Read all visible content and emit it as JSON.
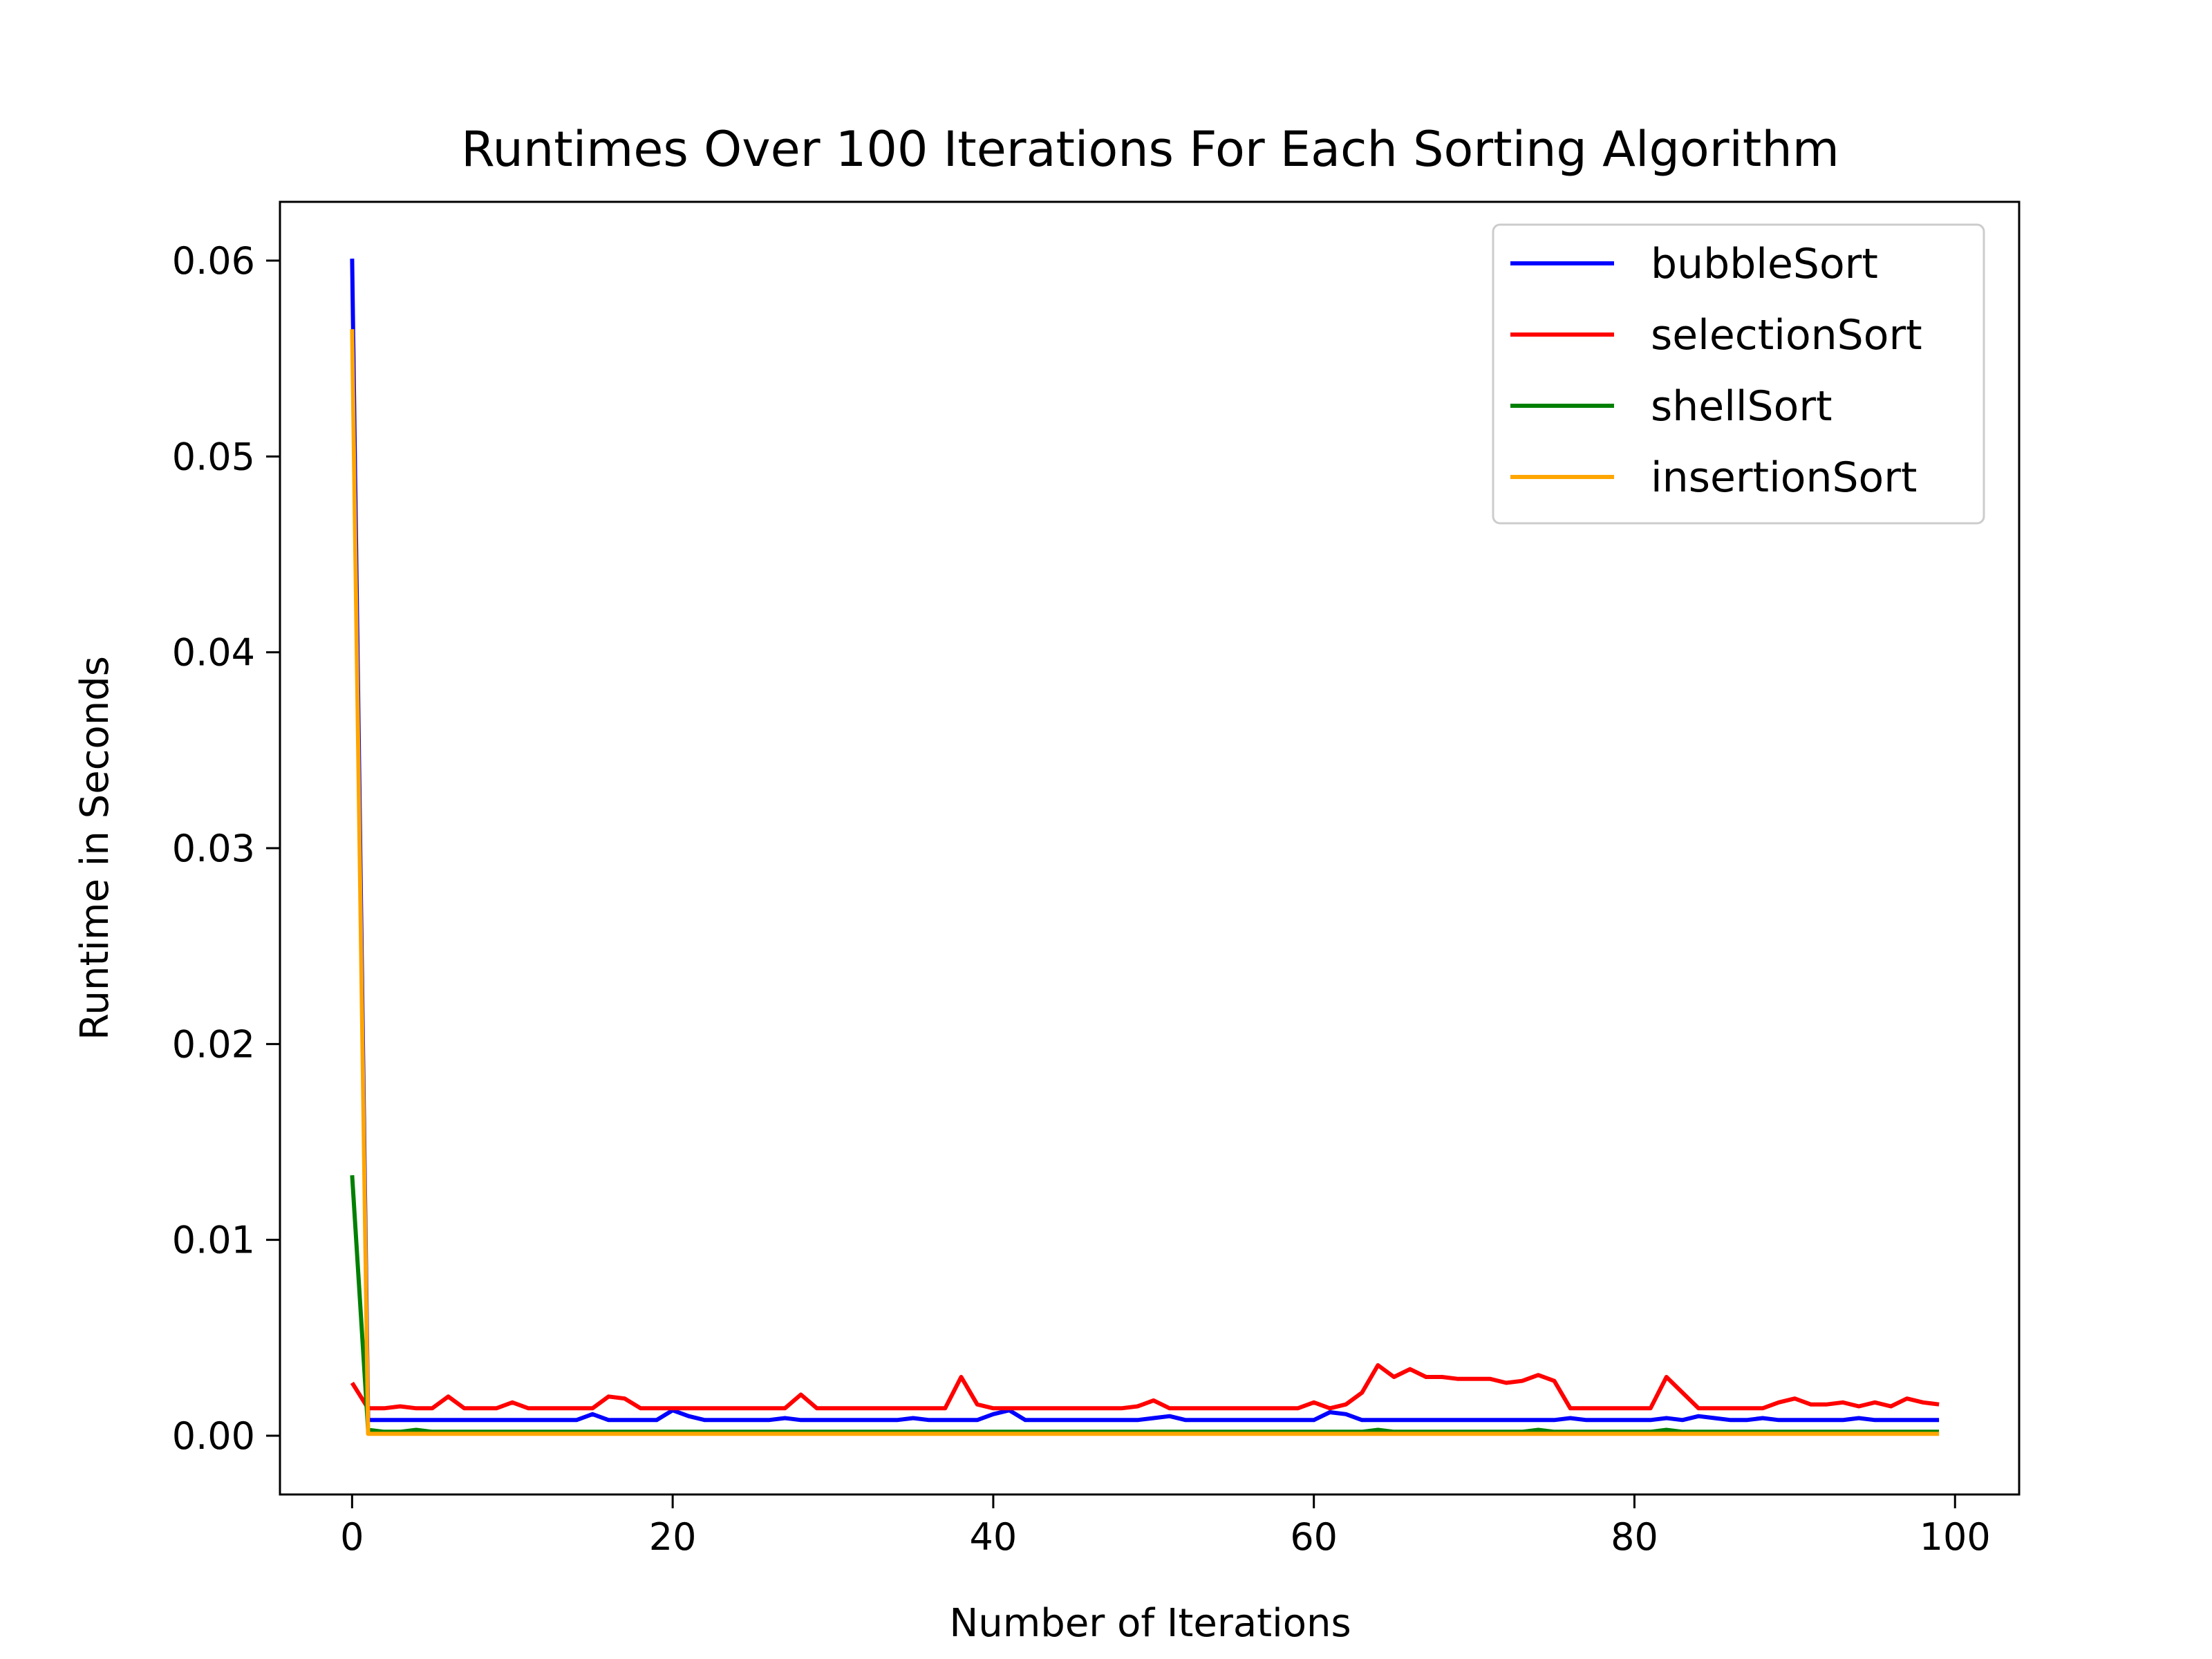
{
  "chart_data": {
    "type": "line",
    "title": "Runtimes Over 100 Iterations For Each Sorting Algorithm",
    "xlabel": "Number of Iterations",
    "ylabel": "Runtime in Seconds",
    "xlim": [
      -4.5,
      104
    ],
    "ylim": [
      -0.003,
      0.063
    ],
    "xticks": [
      0,
      20,
      40,
      60,
      80,
      100
    ],
    "xtick_labels": [
      "0",
      "20",
      "40",
      "60",
      "80",
      "100"
    ],
    "yticks": [
      0.0,
      0.01,
      0.02,
      0.03,
      0.04,
      0.05,
      0.06
    ],
    "ytick_labels": [
      "0.00",
      "0.01",
      "0.02",
      "0.03",
      "0.04",
      "0.05",
      "0.06"
    ],
    "grid": false,
    "legend_position": "top-right",
    "series": [
      {
        "name": "bubbleSort",
        "color": "#0000ff",
        "first_points": [
          [
            0,
            0.0601
          ],
          [
            1,
            0.0008
          ]
        ],
        "baseline": 0.0008,
        "spikes": [
          [
            15,
            0.0011
          ],
          [
            20,
            0.0013
          ],
          [
            21,
            0.001
          ],
          [
            27,
            0.0009
          ],
          [
            35,
            0.0009
          ],
          [
            40,
            0.0011
          ],
          [
            41,
            0.0013
          ],
          [
            50,
            0.0009
          ],
          [
            51,
            0.001
          ],
          [
            61,
            0.0012
          ],
          [
            62,
            0.0011
          ],
          [
            76,
            0.0009
          ],
          [
            82,
            0.0009
          ],
          [
            84,
            0.001
          ],
          [
            85,
            0.0009
          ],
          [
            88,
            0.0009
          ],
          [
            94,
            0.0009
          ]
        ],
        "last_x": 99
      },
      {
        "name": "selectionSort",
        "color": "#ff0000",
        "first_points": [
          [
            0,
            0.0027
          ],
          [
            1,
            0.0014
          ]
        ],
        "baseline": 0.0014,
        "spikes": [
          [
            3,
            0.0015
          ],
          [
            6,
            0.002
          ],
          [
            10,
            0.0017
          ],
          [
            16,
            0.002
          ],
          [
            17,
            0.0019
          ],
          [
            28,
            0.0021
          ],
          [
            38,
            0.003
          ],
          [
            39,
            0.0016
          ],
          [
            49,
            0.0015
          ],
          [
            50,
            0.0018
          ],
          [
            60,
            0.0017
          ],
          [
            62,
            0.0016
          ],
          [
            63,
            0.0022
          ],
          [
            64,
            0.0036
          ],
          [
            65,
            0.003
          ],
          [
            66,
            0.0034
          ],
          [
            67,
            0.003
          ],
          [
            68,
            0.003
          ],
          [
            69,
            0.0029
          ],
          [
            70,
            0.0029
          ],
          [
            71,
            0.0029
          ],
          [
            72,
            0.0027
          ],
          [
            73,
            0.0028
          ],
          [
            74,
            0.0031
          ],
          [
            75,
            0.0028
          ],
          [
            82,
            0.003
          ],
          [
            83,
            0.0022
          ],
          [
            89,
            0.0017
          ],
          [
            90,
            0.0019
          ],
          [
            91,
            0.0016
          ],
          [
            92,
            0.0016
          ],
          [
            93,
            0.0017
          ],
          [
            94,
            0.0015
          ],
          [
            95,
            0.0017
          ],
          [
            96,
            0.0015
          ],
          [
            97,
            0.0019
          ],
          [
            98,
            0.0017
          ],
          [
            99,
            0.0016
          ]
        ],
        "last_x": 99
      },
      {
        "name": "shellSort",
        "color": "#008000",
        "first_points": [
          [
            0,
            0.0133
          ],
          [
            1,
            0.0003
          ]
        ],
        "baseline": 0.0002,
        "spikes": [
          [
            4,
            0.0003
          ],
          [
            64,
            0.0003
          ],
          [
            74,
            0.0003
          ],
          [
            82,
            0.0003
          ]
        ],
        "last_x": 99
      },
      {
        "name": "insertionSort",
        "color": "#ffa500",
        "first_points": [
          [
            0,
            0.0565
          ],
          [
            1,
            0.0001
          ]
        ],
        "baseline": 0.0001,
        "spikes": [],
        "last_x": 99
      }
    ]
  }
}
